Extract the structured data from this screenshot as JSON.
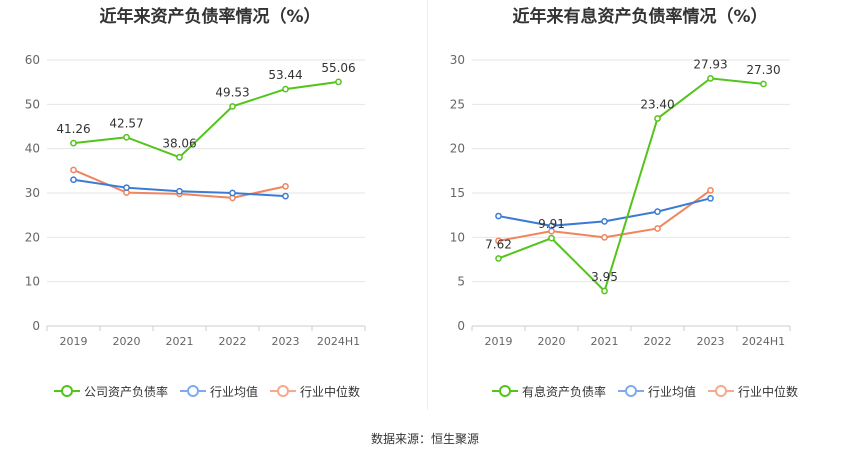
{
  "colors": {
    "company": "#52c41a",
    "industry_avg": "#3a7bd5",
    "industry_median": "#f0845e",
    "legend_avg": "#7eaaf0",
    "legend_median": "#f5a98e",
    "grid": "#e6e6e6",
    "axis_text": "#666666"
  },
  "source": "数据来源：恒生聚源",
  "chart_data": [
    {
      "type": "line",
      "title": "近年来资产负债率情况（%）",
      "categories": [
        "2019",
        "2020",
        "2021",
        "2022",
        "2023",
        "2024H1"
      ],
      "ylim": [
        0,
        60
      ],
      "yticks": [
        "0",
        "10",
        "20",
        "30",
        "40",
        "50",
        "60"
      ],
      "grid": true,
      "legend_position": "bottom",
      "series": [
        {
          "name": "公司资产负债率",
          "values": [
            41.26,
            42.57,
            38.06,
            49.53,
            53.44,
            55.06
          ],
          "labels": [
            "41.26",
            "42.57",
            "38.06",
            "49.53",
            "53.44",
            "55.06"
          ]
        },
        {
          "name": "行业均值",
          "values": [
            33.0,
            31.2,
            30.4,
            30.0,
            29.3,
            null
          ]
        },
        {
          "name": "行业中位数",
          "values": [
            35.2,
            30.1,
            29.8,
            28.9,
            31.5,
            null
          ]
        }
      ]
    },
    {
      "type": "line",
      "title": "近年来有息资产负债率情况（%）",
      "categories": [
        "2019",
        "2020",
        "2021",
        "2022",
        "2023",
        "2024H1"
      ],
      "ylim": [
        0,
        30
      ],
      "yticks": [
        "0",
        "5",
        "10",
        "15",
        "20",
        "25",
        "30"
      ],
      "grid": true,
      "legend_position": "bottom",
      "series": [
        {
          "name": "有息资产负债率",
          "values": [
            7.62,
            9.91,
            3.95,
            23.4,
            27.93,
            27.3
          ],
          "labels": [
            "7.62",
            "9.91",
            "3.95",
            "23.40",
            "27.93",
            "27.30"
          ]
        },
        {
          "name": "行业均值",
          "values": [
            12.4,
            11.3,
            11.8,
            12.9,
            14.4,
            null
          ]
        },
        {
          "name": "行业中位数",
          "values": [
            9.6,
            10.7,
            10.0,
            11.0,
            15.3,
            null
          ]
        }
      ]
    }
  ]
}
